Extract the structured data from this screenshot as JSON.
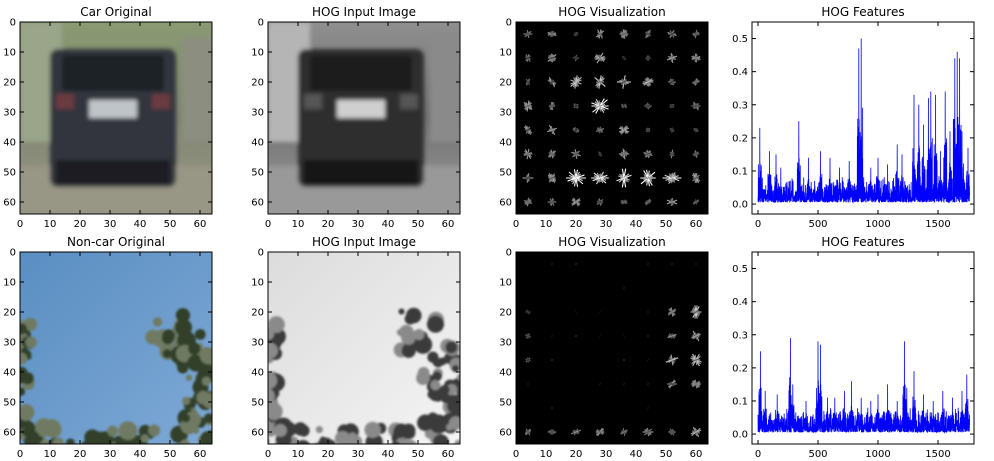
{
  "chart_data": [
    {
      "type": "image",
      "title": "Car Original",
      "xticks": [
        0,
        10,
        20,
        30,
        40,
        50,
        60
      ],
      "yticks": [
        0,
        10,
        20,
        30,
        40,
        50,
        60
      ],
      "xlim": [
        0,
        64
      ],
      "ylim": [
        64,
        0
      ],
      "image_kind": "car-color"
    },
    {
      "type": "image",
      "title": "HOG Input Image",
      "xticks": [
        0,
        10,
        20,
        30,
        40,
        50,
        60
      ],
      "yticks": [
        0,
        10,
        20,
        30,
        40,
        50,
        60
      ],
      "xlim": [
        0,
        64
      ],
      "ylim": [
        64,
        0
      ],
      "image_kind": "car-gray"
    },
    {
      "type": "image",
      "title": "HOG Visualization",
      "xticks": [
        0,
        10,
        20,
        30,
        40,
        50,
        60
      ],
      "yticks": [
        0,
        10,
        20,
        30,
        40,
        50,
        60
      ],
      "xlim": [
        0,
        64
      ],
      "ylim": [
        64,
        0
      ],
      "image_kind": "hog-car"
    },
    {
      "type": "line",
      "title": "HOG Features",
      "xticks": [
        0,
        500,
        1000,
        1500
      ],
      "yticks": [
        "0.0",
        "0.1",
        "0.2",
        "0.3",
        "0.4",
        "0.5"
      ],
      "xlim": [
        -50,
        1800
      ],
      "ylim": [
        -0.03,
        0.55
      ],
      "line_color": "#0000ff",
      "n_features": 1764,
      "peaks": [
        [
          15,
          0.23
        ],
        [
          95,
          0.16
        ],
        [
          150,
          0.15
        ],
        [
          190,
          0.11
        ],
        [
          340,
          0.25
        ],
        [
          420,
          0.14
        ],
        [
          520,
          0.16
        ],
        [
          600,
          0.14
        ],
        [
          680,
          0.11
        ],
        [
          760,
          0.13
        ],
        [
          840,
          0.47
        ],
        [
          860,
          0.5
        ],
        [
          940,
          0.11
        ],
        [
          1000,
          0.14
        ],
        [
          1080,
          0.12
        ],
        [
          1160,
          0.18
        ],
        [
          1200,
          0.15
        ],
        [
          1300,
          0.33
        ],
        [
          1340,
          0.3
        ],
        [
          1380,
          0.24
        ],
        [
          1420,
          0.32
        ],
        [
          1440,
          0.34
        ],
        [
          1480,
          0.33
        ],
        [
          1520,
          0.16
        ],
        [
          1560,
          0.34
        ],
        [
          1600,
          0.22
        ],
        [
          1640,
          0.44
        ],
        [
          1660,
          0.46
        ],
        [
          1680,
          0.44
        ],
        [
          1700,
          0.22
        ],
        [
          1750,
          0.17
        ]
      ]
    },
    {
      "type": "image",
      "title": "Non-car Original",
      "xticks": [
        0,
        10,
        20,
        30,
        40,
        50,
        60
      ],
      "yticks": [
        0,
        10,
        20,
        30,
        40,
        50,
        60
      ],
      "xlim": [
        0,
        64
      ],
      "ylim": [
        64,
        0
      ],
      "image_kind": "sky-color"
    },
    {
      "type": "image",
      "title": "HOG Input Image",
      "xticks": [
        0,
        10,
        20,
        30,
        40,
        50,
        60
      ],
      "yticks": [
        0,
        10,
        20,
        30,
        40,
        50,
        60
      ],
      "xlim": [
        0,
        64
      ],
      "ylim": [
        64,
        0
      ],
      "image_kind": "sky-gray"
    },
    {
      "type": "image",
      "title": "HOG Visualization",
      "xticks": [
        0,
        10,
        20,
        30,
        40,
        50,
        60
      ],
      "yticks": [
        0,
        10,
        20,
        30,
        40,
        50,
        60
      ],
      "xlim": [
        0,
        64
      ],
      "ylim": [
        64,
        0
      ],
      "image_kind": "hog-sky"
    },
    {
      "type": "line",
      "title": "HOG Features",
      "xticks": [
        0,
        500,
        1000,
        1500
      ],
      "yticks": [
        "0.0",
        "0.1",
        "0.2",
        "0.3",
        "0.4",
        "0.5"
      ],
      "xlim": [
        -50,
        1800
      ],
      "ylim": [
        -0.03,
        0.55
      ],
      "line_color": "#0000ff",
      "n_features": 1764,
      "peaks": [
        [
          20,
          0.25
        ],
        [
          60,
          0.13
        ],
        [
          160,
          0.12
        ],
        [
          270,
          0.29
        ],
        [
          290,
          0.15
        ],
        [
          400,
          0.1
        ],
        [
          500,
          0.28
        ],
        [
          520,
          0.27
        ],
        [
          580,
          0.11
        ],
        [
          640,
          0.11
        ],
        [
          720,
          0.13
        ],
        [
          780,
          0.16
        ],
        [
          860,
          0.11
        ],
        [
          940,
          0.1
        ],
        [
          1000,
          0.12
        ],
        [
          1080,
          0.15
        ],
        [
          1160,
          0.1
        ],
        [
          1220,
          0.28
        ],
        [
          1240,
          0.14
        ],
        [
          1300,
          0.19
        ],
        [
          1380,
          0.12
        ],
        [
          1460,
          0.1
        ],
        [
          1540,
          0.13
        ],
        [
          1620,
          0.11
        ],
        [
          1700,
          0.13
        ],
        [
          1740,
          0.18
        ]
      ]
    }
  ]
}
